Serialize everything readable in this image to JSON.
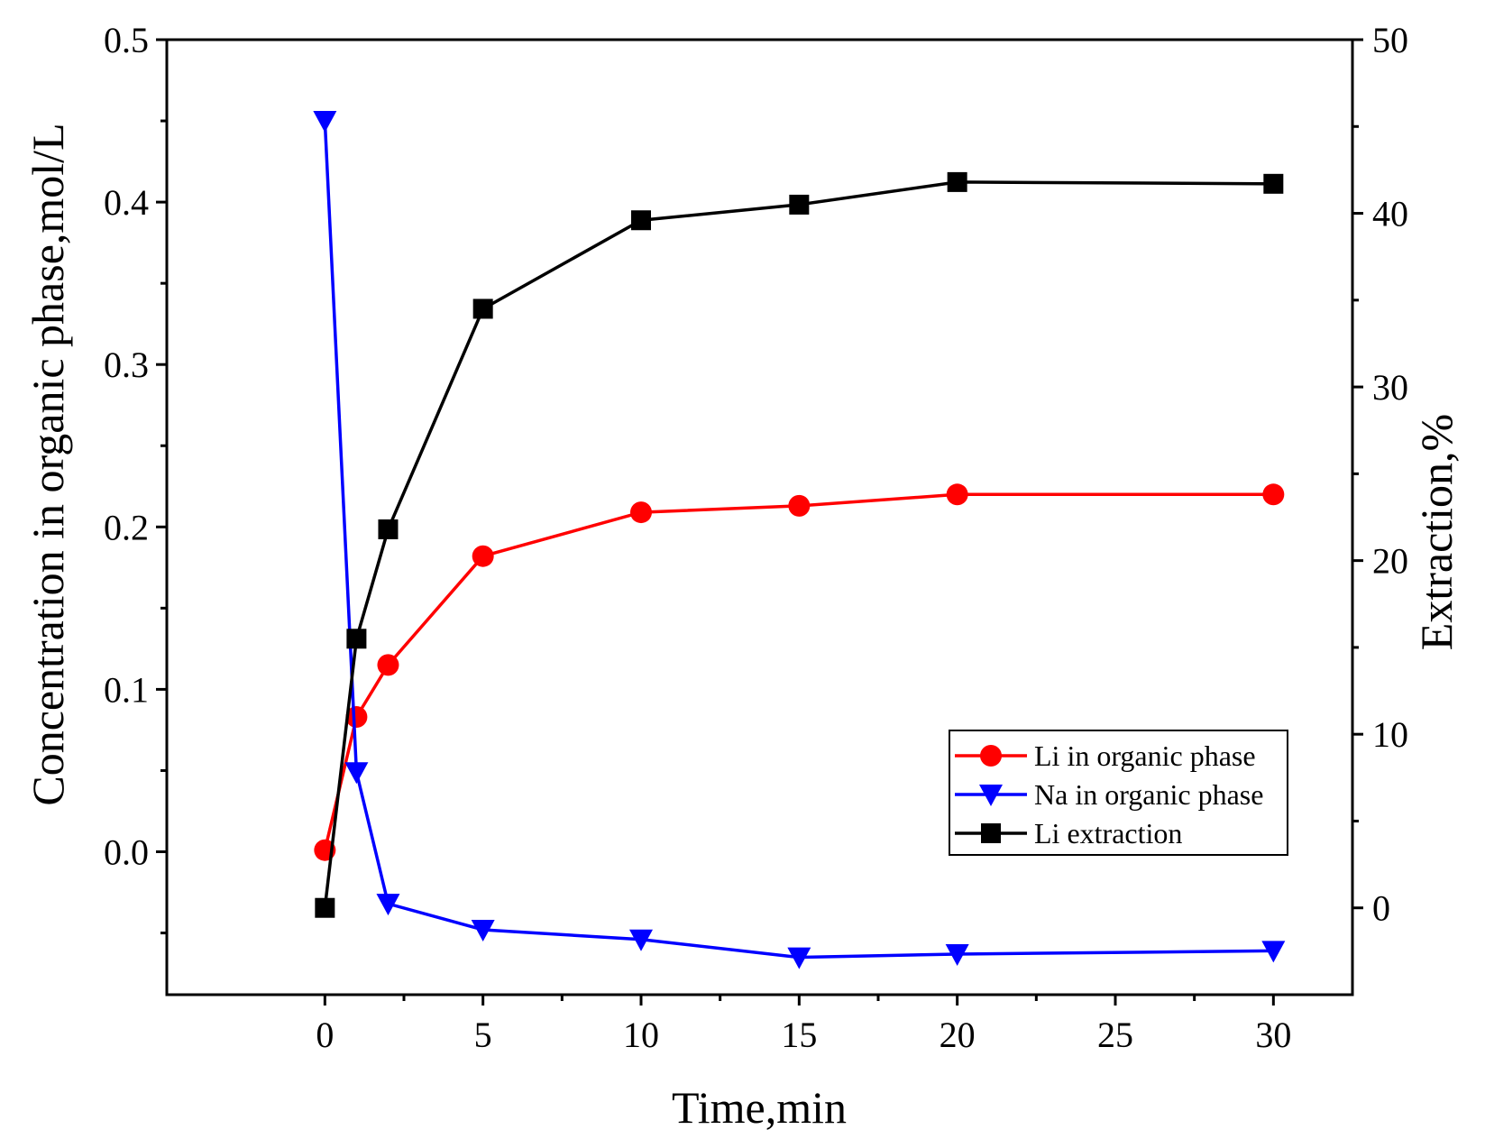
{
  "chart_data": {
    "type": "line",
    "xlabel": "Time,min",
    "ylabel_left": "Concentration in organic phase,mol/L",
    "ylabel_right": "Extraction,%",
    "xlim": [
      -5,
      32.5
    ],
    "ylim_left": [
      -0.088,
      0.5
    ],
    "ylim_right": [
      -5,
      50
    ],
    "x_ticks": [
      0,
      5,
      10,
      15,
      20,
      25,
      30
    ],
    "y_left_ticks": [
      0.0,
      0.1,
      0.2,
      0.3,
      0.4,
      0.5
    ],
    "y_left_tick_labels": [
      "0.0",
      "0.1",
      "0.2",
      "0.3",
      "0.4",
      "0.5"
    ],
    "y_right_ticks": [
      0,
      10,
      20,
      30,
      40,
      50
    ],
    "y_right_tick_labels": [
      "0",
      "10",
      "20",
      "30",
      "40",
      "50"
    ],
    "legend_position": "center-right",
    "series": [
      {
        "name": "Li in organic phase",
        "axis": "left",
        "color": "#ff0000",
        "marker": "circle",
        "x": [
          0,
          1,
          2,
          5,
          10,
          15,
          20,
          30
        ],
        "values": [
          0.001,
          0.083,
          0.115,
          0.182,
          0.209,
          0.213,
          0.22,
          0.22
        ]
      },
      {
        "name": "Na in organic phase",
        "axis": "left",
        "color": "#0000ff",
        "marker": "triangle-down",
        "x": [
          0,
          1,
          2,
          5,
          10,
          15,
          20,
          30
        ],
        "values": [
          0.45,
          0.049,
          -0.032,
          -0.048,
          -0.054,
          -0.065,
          -0.063,
          -0.061
        ]
      },
      {
        "name": "Li extraction",
        "axis": "right",
        "color": "#000000",
        "marker": "square",
        "x": [
          0,
          1,
          2,
          5,
          10,
          15,
          20,
          30
        ],
        "values": [
          0.0,
          15.5,
          21.8,
          34.5,
          39.6,
          40.5,
          41.8,
          41.7
        ]
      }
    ]
  }
}
